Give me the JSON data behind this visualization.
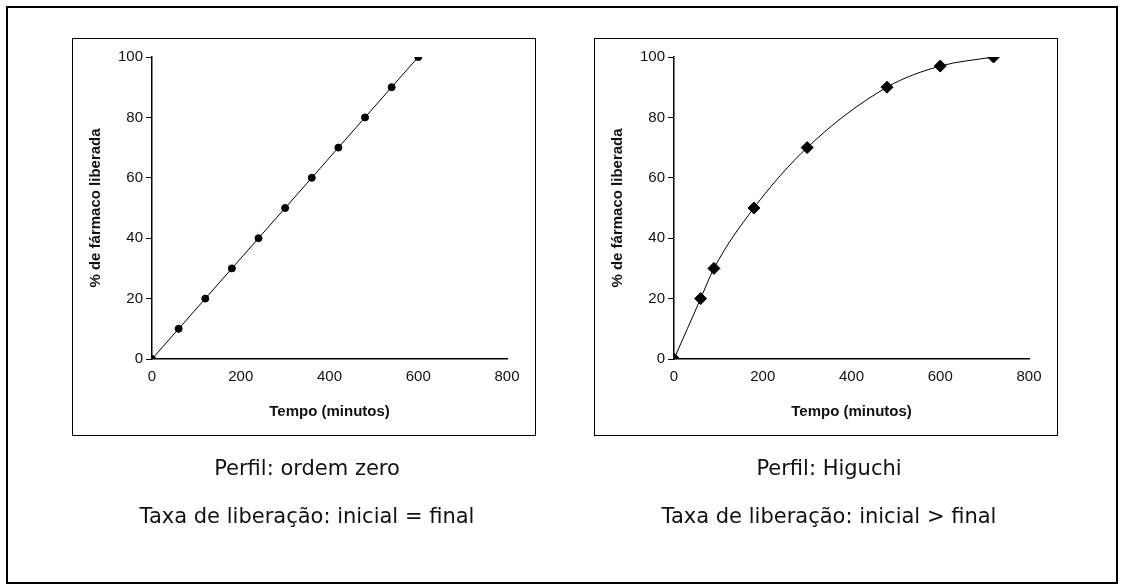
{
  "chart_data": [
    {
      "type": "line",
      "xlabel": "Tempo (minutos)",
      "ylabel": "% de fármaco liberada",
      "marker": "circle",
      "line_style": "solid",
      "grid": false,
      "legend": false,
      "xlim": [
        0,
        800
      ],
      "xticks": [
        0,
        200,
        400,
        600,
        800
      ],
      "ylim": [
        0,
        100
      ],
      "yticks": [
        0,
        20,
        40,
        60,
        80,
        100
      ],
      "series": [
        {
          "color": "#000000",
          "x": [
            0,
            60,
            120,
            180,
            240,
            300,
            360,
            420,
            480,
            540,
            600
          ],
          "values": [
            0,
            10,
            20,
            30,
            40,
            50,
            60,
            70,
            80,
            90,
            100
          ]
        }
      ],
      "annotations": [
        "Perfil: ordem zero",
        "Taxa de liberação: inicial = final"
      ]
    },
    {
      "type": "line",
      "xlabel": "Tempo (minutos)",
      "ylabel": "% de fármaco liberada",
      "marker": "diamond",
      "line_style": "solid",
      "grid": false,
      "legend": false,
      "xlim": [
        0,
        800
      ],
      "xticks": [
        0,
        200,
        400,
        600,
        800
      ],
      "ylim": [
        0,
        100
      ],
      "yticks": [
        0,
        20,
        40,
        60,
        80,
        100
      ],
      "series": [
        {
          "color": "#000000",
          "x": [
            0,
            60,
            90,
            180,
            300,
            480,
            600,
            720
          ],
          "values": [
            0,
            20,
            30,
            50,
            70,
            90,
            97,
            100
          ]
        }
      ],
      "annotations": [
        "Perfil: Higuchi",
        "Taxa de liberação: inicial > final"
      ]
    }
  ]
}
